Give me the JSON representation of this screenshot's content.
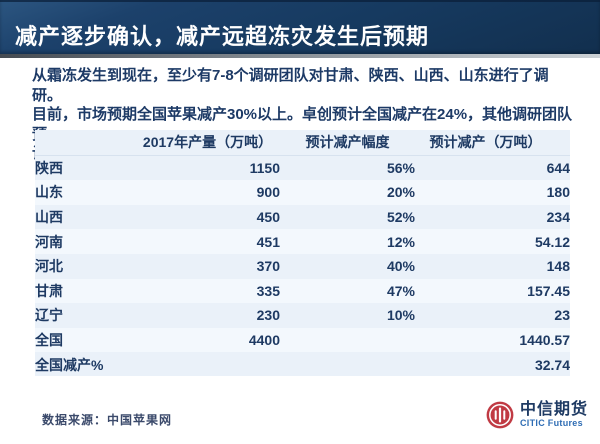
{
  "header": {
    "title": "减产逐步确认，减产远超冻灾发生后预期"
  },
  "intro": {
    "lines": [
      "从霜冻发生到现在，至少有7-8个调研团队对甘肃、陕西、山西、山东进行了调研。",
      "目前，市场预期全国苹果减产30%以上。卓创预计全国减产在24%，其他调研团队预",
      "计全国减产30-50%不等。"
    ]
  },
  "table": {
    "columns": [
      "",
      "2017年产量（万吨）",
      "预计减产幅度",
      "预计减产（万吨）"
    ],
    "rows": [
      [
        "陕西",
        "1150",
        "56%",
        "644"
      ],
      [
        "山东",
        "900",
        "20%",
        "180"
      ],
      [
        "山西",
        "450",
        "52%",
        "234"
      ],
      [
        "河南",
        "451",
        "12%",
        "54.12"
      ],
      [
        "河北",
        "370",
        "40%",
        "148"
      ],
      [
        "甘肃",
        "335",
        "47%",
        "157.45"
      ],
      [
        "辽宁",
        "230",
        "10%",
        "23"
      ],
      [
        "全国",
        "4400",
        "",
        "1440.57"
      ],
      [
        "全国减产%",
        "",
        "",
        "32.74"
      ]
    ]
  },
  "footer": {
    "source": "数据来源：中国苹果网",
    "logo_cn": "中信期货",
    "logo_en": "CITIC Futures"
  },
  "colors": {
    "header_navy": "#16365C",
    "text_navy": "#1E3A63",
    "table_bg": "#EAF1F9",
    "row_alt": "#F3F8FD",
    "citic_red": "#C03A43",
    "citic_blue": "#2F6DB4"
  }
}
